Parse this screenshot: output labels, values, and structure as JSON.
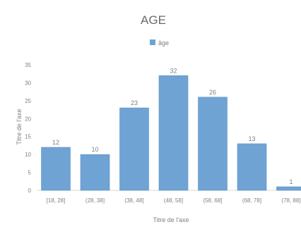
{
  "chart_data": {
    "type": "bar",
    "title": "AGE",
    "xlabel": "Titre de l'axe",
    "ylabel": "Titre de l'axe",
    "categories": [
      "[18, 28]",
      "(28, 38]",
      "(38, 48]",
      "(48, 58]",
      "(58, 68]",
      "(68, 78]",
      "(78, 88]"
    ],
    "series": [
      {
        "name": "âge",
        "values": [
          12,
          10,
          23,
          32,
          26,
          13,
          1
        ]
      }
    ],
    "ylim": [
      0,
      35
    ],
    "yticks": [
      0,
      5,
      10,
      15,
      20,
      25,
      30,
      35
    ],
    "data_labels": true,
    "grid": false,
    "legend_position": "top"
  },
  "colors": {
    "bar": "#6FA3D4",
    "bar_edge": "#5B93C8",
    "text": "#808080",
    "axis": "#D9D9D9"
  }
}
